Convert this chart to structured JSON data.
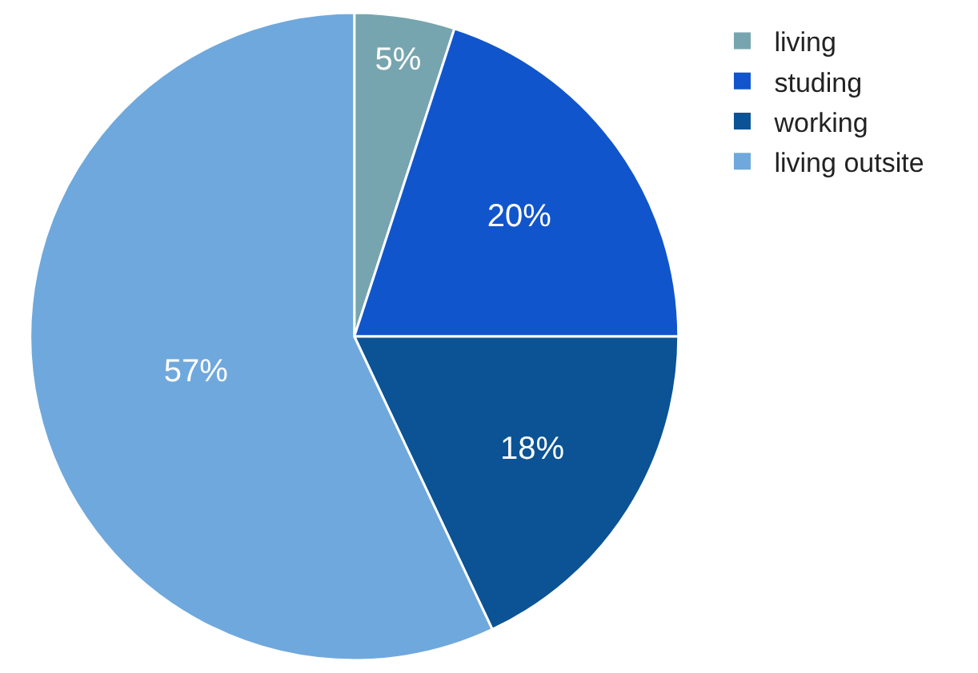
{
  "chart_data": {
    "type": "pie",
    "categories": [
      "living",
      "studing",
      "working",
      "living outsite"
    ],
    "values": [
      5,
      20,
      18,
      57
    ],
    "colors": [
      "#76a5af",
      "#1155cc",
      "#0b5394",
      "#6fa8dc"
    ],
    "value_labels": [
      "5%",
      "20%",
      "18%",
      "57%"
    ],
    "legend": "top right"
  }
}
